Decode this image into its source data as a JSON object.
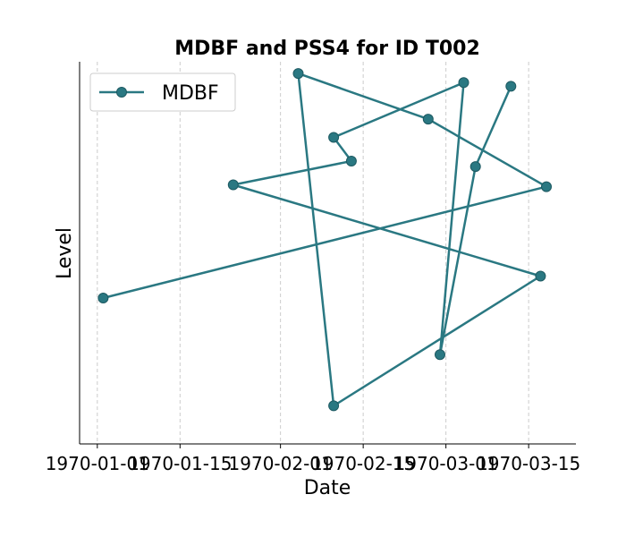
{
  "chart_data": {
    "type": "line",
    "title": "MDBF and PSS4 for ID T002",
    "xlabel": "Date",
    "ylabel": "Level",
    "x_tick_labels": [
      "1970-01-01",
      "1970-01-15",
      "1970-02-01",
      "1970-02-15",
      "1970-03-01",
      "1970-03-15"
    ],
    "x_tick_dates": [
      "1970-01-01",
      "1970-01-15",
      "1970-02-01",
      "1970-02-15",
      "1970-03-01",
      "1970-03-15"
    ],
    "xlim": [
      "1969-12-29",
      "1970-03-23"
    ],
    "ylim": [
      0,
      1
    ],
    "y_ticks_visible": false,
    "grid": {
      "x": true,
      "y": false,
      "style": "dashed"
    },
    "legend": {
      "placement": "top-left"
    },
    "series": [
      {
        "name": "MDBF",
        "color": "#2a7882",
        "marker": "circle",
        "x": [
          "1970-01-02",
          "1970-03-18",
          "1970-02-26",
          "1970-02-04",
          "1970-02-10",
          "1970-03-17",
          "1970-01-24",
          "1970-02-13",
          "1970-02-10",
          "1970-03-04",
          "1970-02-28",
          "1970-03-06",
          "1970-03-12"
        ],
        "y": [
          0.375,
          0.68,
          0.865,
          0.99,
          0.08,
          0.435,
          0.685,
          0.75,
          0.815,
          0.965,
          0.22,
          0.735,
          0.955
        ]
      }
    ]
  }
}
